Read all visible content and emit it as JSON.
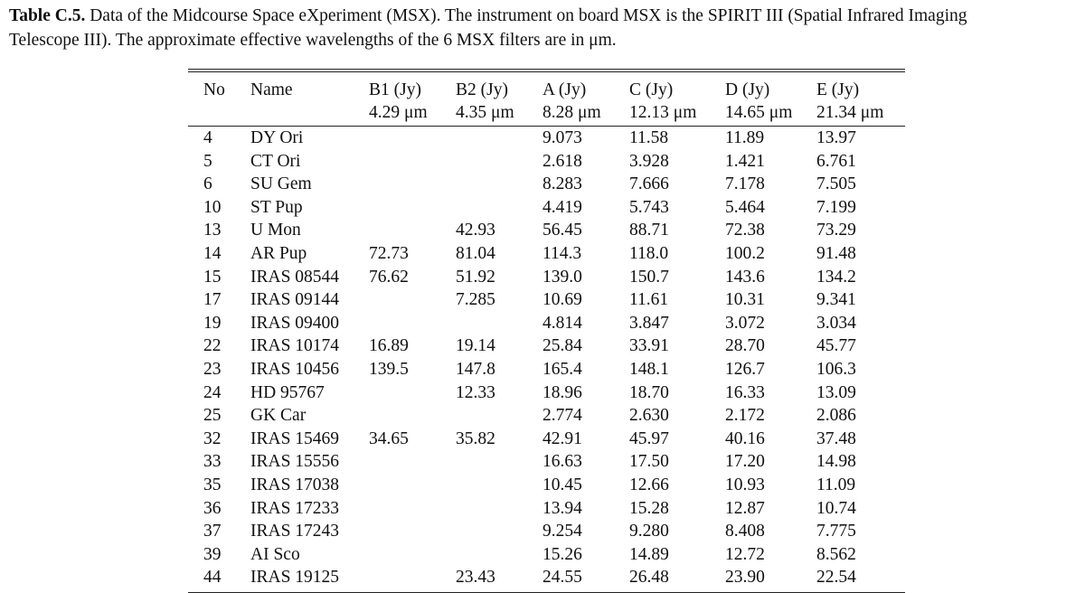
{
  "caption": {
    "label": "Table C.5.",
    "text_line1": " Data of the Midcourse Space eXperiment (MSX). The instrument on board MSX is the SPIRIT III (Spatial Infrared Imaging",
    "text_line2": "Telescope III). The approximate effective wavelengths of the 6 MSX filters are in μm."
  },
  "table": {
    "header_row1": [
      "No",
      "Name",
      "B1 (Jy)",
      "B2 (Jy)",
      "A (Jy)",
      "C (Jy)",
      "D (Jy)",
      "E (Jy)"
    ],
    "header_row2": [
      "",
      "",
      "4.29 μm",
      "4.35 μm",
      "8.28 μm",
      "12.13 μm",
      "14.65 μm",
      "21.34 μm"
    ],
    "rows": [
      [
        "4",
        "DY Ori",
        "",
        "",
        "9.073",
        "11.58",
        "11.89",
        "13.97"
      ],
      [
        "5",
        "CT Ori",
        "",
        "",
        "2.618",
        "3.928",
        "1.421",
        "6.761"
      ],
      [
        "6",
        "SU Gem",
        "",
        "",
        "8.283",
        "7.666",
        "7.178",
        "7.505"
      ],
      [
        "10",
        "ST Pup",
        "",
        "",
        "4.419",
        "5.743",
        "5.464",
        "7.199"
      ],
      [
        "13",
        "U Mon",
        "",
        "42.93",
        "56.45",
        "88.71",
        "72.38",
        "73.29"
      ],
      [
        "14",
        "AR Pup",
        "72.73",
        "81.04",
        "114.3",
        "118.0",
        "100.2",
        "91.48"
      ],
      [
        "15",
        "IRAS 08544",
        "76.62",
        "51.92",
        "139.0",
        "150.7",
        "143.6",
        "134.2"
      ],
      [
        "17",
        "IRAS 09144",
        "",
        "7.285",
        "10.69",
        "11.61",
        "10.31",
        "9.341"
      ],
      [
        "19",
        "IRAS 09400",
        "",
        "",
        "4.814",
        "3.847",
        "3.072",
        "3.034"
      ],
      [
        "22",
        "IRAS 10174",
        "16.89",
        "19.14",
        "25.84",
        "33.91",
        "28.70",
        "45.77"
      ],
      [
        "23",
        "IRAS 10456",
        "139.5",
        "147.8",
        "165.4",
        "148.1",
        "126.7",
        "106.3"
      ],
      [
        "24",
        "HD 95767",
        "",
        "12.33",
        "18.96",
        "18.70",
        "16.33",
        "13.09"
      ],
      [
        "25",
        "GK Car",
        "",
        "",
        "2.774",
        "2.630",
        "2.172",
        "2.086"
      ],
      [
        "32",
        "IRAS 15469",
        "34.65",
        "35.82",
        "42.91",
        "45.97",
        "40.16",
        "37.48"
      ],
      [
        "33",
        "IRAS 15556",
        "",
        "",
        "16.63",
        "17.50",
        "17.20",
        "14.98"
      ],
      [
        "35",
        "IRAS 17038",
        "",
        "",
        "10.45",
        "12.66",
        "10.93",
        "11.09"
      ],
      [
        "36",
        "IRAS 17233",
        "",
        "",
        "13.94",
        "15.28",
        "12.87",
        "10.74"
      ],
      [
        "37",
        "IRAS 17243",
        "",
        "",
        "9.254",
        "9.280",
        "8.408",
        "7.775"
      ],
      [
        "39",
        "AI Sco",
        "",
        "",
        "15.26",
        "14.89",
        "12.72",
        "8.562"
      ],
      [
        "44",
        "IRAS 19125",
        "",
        "23.43",
        "24.55",
        "26.48",
        "23.90",
        "22.54"
      ]
    ]
  }
}
